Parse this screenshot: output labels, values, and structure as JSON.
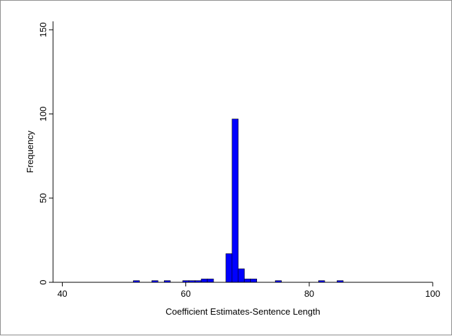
{
  "chart_data": {
    "type": "bar",
    "title": "",
    "xlabel": "Coefficient Estimates-Sentence Length",
    "ylabel": "Frequency",
    "xlim": [
      38.5,
      100
    ],
    "ylim": [
      0,
      155
    ],
    "x_ticks": [
      40,
      60,
      80,
      100
    ],
    "y_ticks": [
      0,
      50,
      100,
      150
    ],
    "bin_width": 1,
    "bins": [
      {
        "start": 51.5,
        "count": 1
      },
      {
        "start": 54.5,
        "count": 1
      },
      {
        "start": 56.5,
        "count": 1
      },
      {
        "start": 59.5,
        "count": 1
      },
      {
        "start": 60.5,
        "count": 1
      },
      {
        "start": 61.5,
        "count": 1
      },
      {
        "start": 62.5,
        "count": 2
      },
      {
        "start": 63.5,
        "count": 2
      },
      {
        "start": 66.5,
        "count": 17
      },
      {
        "start": 67.5,
        "count": 97
      },
      {
        "start": 68.5,
        "count": 8
      },
      {
        "start": 69.5,
        "count": 2
      },
      {
        "start": 70.5,
        "count": 2
      },
      {
        "start": 74.5,
        "count": 1
      },
      {
        "start": 81.5,
        "count": 1
      },
      {
        "start": 84.5,
        "count": 1
      }
    ],
    "colors": {
      "bar_fill": "#0000ff",
      "bar_stroke": "#000000",
      "axis": "#000000"
    },
    "grid": false,
    "legend": "none"
  }
}
